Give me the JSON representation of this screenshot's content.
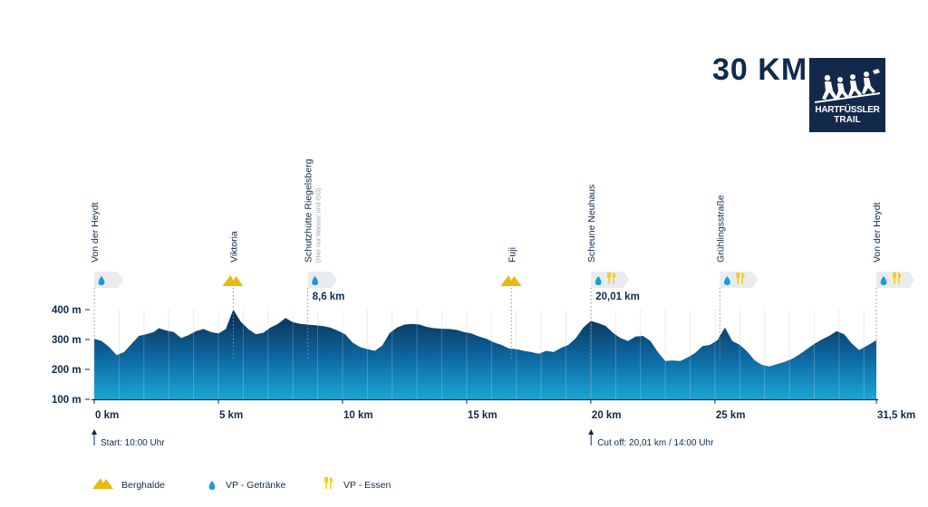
{
  "header": {
    "title": "30 KM",
    "logo_line1": "HARTFÜSSLER",
    "logo_line2": "TRAIL"
  },
  "colors": {
    "navy": "#0f2a4a",
    "profile_top": "#0b2a4e",
    "profile_bottom": "#1aa6d6",
    "gold": "#e8b90f",
    "water": "#1c9ad6",
    "food": "#f2cf18"
  },
  "chart_data": {
    "type": "area",
    "title": "",
    "xlabel": "",
    "ylabel": "",
    "xlim": [
      0,
      31.5
    ],
    "ylim": [
      100,
      400
    ],
    "grid": "vertical lines per km",
    "y_ticks": [
      {
        "value": 100,
        "label": "100 m"
      },
      {
        "value": 200,
        "label": "200 m"
      },
      {
        "value": 300,
        "label": "300 m"
      },
      {
        "value": 400,
        "label": "400 m"
      }
    ],
    "x_ticks": [
      {
        "value": 0,
        "label": "0 km"
      },
      {
        "value": 5,
        "label": "5 km"
      },
      {
        "value": 10,
        "label": "10 km"
      },
      {
        "value": 15,
        "label": "15 km"
      },
      {
        "value": 20,
        "label": "20 km"
      },
      {
        "value": 25,
        "label": "25 km"
      },
      {
        "value": 31.5,
        "label": "31,5 km"
      }
    ],
    "series": [
      {
        "x": [
          0,
          0.3,
          0.6,
          0.9,
          1.2,
          1.5,
          1.8,
          2.1,
          2.4,
          2.6,
          2.9,
          3.2,
          3.5,
          3.8,
          4.1,
          4.4,
          4.7,
          5.0,
          5.3,
          5.6,
          5.9,
          6.2,
          6.5,
          6.8,
          7.1,
          7.4,
          7.7,
          8.0,
          8.3,
          8.6,
          8.9,
          9.2,
          9.5,
          9.8,
          10.1,
          10.4,
          10.7,
          11.0,
          11.3,
          11.6,
          11.9,
          12.2,
          12.5,
          12.8,
          13.1,
          13.4,
          13.7,
          14.0,
          14.3,
          14.6,
          14.9,
          15.2,
          15.5,
          15.8,
          16.1,
          16.4,
          16.7,
          17.0,
          17.3,
          17.6,
          17.9,
          18.2,
          18.5,
          18.8,
          19.1,
          19.4,
          19.7,
          20.0,
          20.3,
          20.6,
          20.9,
          21.2,
          21.5,
          21.8,
          22.1,
          22.4,
          22.7,
          23.0,
          23.3,
          23.6,
          23.9,
          24.2,
          24.5,
          24.8,
          25.1,
          25.4,
          25.7,
          26.0,
          26.3,
          26.6,
          26.9,
          27.2,
          27.5,
          27.8,
          28.1,
          28.4,
          28.7,
          29.0,
          29.3,
          29.6,
          29.9,
          30.2,
          30.5,
          30.8,
          31.1,
          31.5
        ],
        "y": [
          302,
          295,
          275,
          248,
          258,
          285,
          312,
          318,
          325,
          338,
          330,
          325,
          305,
          315,
          328,
          335,
          325,
          320,
          335,
          400,
          360,
          335,
          318,
          322,
          340,
          352,
          372,
          358,
          352,
          350,
          348,
          345,
          340,
          330,
          318,
          290,
          275,
          268,
          262,
          280,
          322,
          340,
          350,
          352,
          350,
          342,
          338,
          336,
          335,
          332,
          325,
          320,
          310,
          302,
          290,
          282,
          270,
          268,
          262,
          258,
          252,
          262,
          258,
          272,
          282,
          305,
          340,
          362,
          355,
          345,
          322,
          305,
          295,
          310,
          312,
          295,
          258,
          228,
          230,
          228,
          240,
          255,
          278,
          282,
          298,
          340,
          295,
          282,
          260,
          230,
          215,
          210,
          218,
          225,
          235,
          250,
          268,
          285,
          300,
          312,
          328,
          318,
          288,
          265,
          278,
          298
        ]
      }
    ],
    "markers": [
      {
        "km": 0,
        "label": "Von der Heydt",
        "sublabel": "",
        "icons": [
          "water"
        ],
        "km_label": "",
        "note": "Start: 10:00 Uhr"
      },
      {
        "km": 5.6,
        "label": "Viktoria",
        "sublabel": "",
        "icons": [
          "berghalde"
        ],
        "km_label": "",
        "note": ""
      },
      {
        "km": 8.6,
        "label": "Schutzhütte Riegelsberg",
        "sublabel": "(Hier nur Wasser und ISO)",
        "icons": [
          "water"
        ],
        "km_label": "8,6 km",
        "note": ""
      },
      {
        "km": 16.8,
        "label": "Fuji",
        "sublabel": "",
        "icons": [
          "berghalde"
        ],
        "km_label": "",
        "note": ""
      },
      {
        "km": 20.01,
        "label": "Scheune Neuhaus",
        "sublabel": "",
        "icons": [
          "water",
          "food"
        ],
        "km_label": "20,01 km",
        "note": "Cut off: 20,01 km / 14:00 Uhr"
      },
      {
        "km": 25.2,
        "label": "Grühlingsstraße",
        "sublabel": "",
        "icons": [
          "water",
          "food"
        ],
        "km_label": "",
        "note": ""
      },
      {
        "km": 31.5,
        "label": "Von der Heydt",
        "sublabel": "",
        "icons": [
          "water",
          "food"
        ],
        "km_label": "",
        "note": ""
      }
    ],
    "legend": [
      {
        "icon": "berghalde",
        "label": "Berghalde"
      },
      {
        "icon": "water",
        "label": "VP - Getränke"
      },
      {
        "icon": "food",
        "label": "VP - Essen"
      }
    ]
  }
}
